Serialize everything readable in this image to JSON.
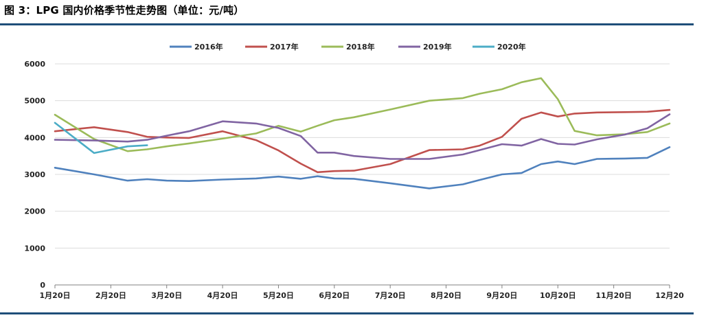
{
  "figure": {
    "title": "图 3：LPG 国内价格季节性走势图（单位：元/吨）"
  },
  "chart_data": {
    "type": "line",
    "title": "图 3：LPG 国内价格季节性走势图（单位：元/吨）",
    "xlabel": "",
    "ylabel": "",
    "ylim": [
      0,
      6000
    ],
    "yticks": [
      0,
      1000,
      2000,
      3000,
      4000,
      5000,
      6000
    ],
    "grid": true,
    "legend_position": "top",
    "x_tick_labels": [
      "1月20日",
      "2月20日",
      "3月20日",
      "4月20日",
      "5月20日",
      "6月20日",
      "7月20日",
      "8月20日",
      "9月20日",
      "10月20日",
      "11月20日",
      "12月20"
    ],
    "x_tick_index": [
      0,
      1,
      2,
      3,
      4,
      5,
      6,
      7,
      8,
      9,
      10,
      11
    ],
    "series": [
      {
        "name": "2016年",
        "color": "#4f81bd",
        "x": [
          0,
          0.7,
          1.3,
          1.65,
          2.0,
          2.4,
          3.0,
          3.6,
          4.0,
          4.4,
          4.7,
          5.0,
          5.35,
          6.0,
          6.7,
          7.3,
          7.6,
          8.0,
          8.35,
          8.7,
          9.0,
          9.3,
          9.7,
          10.2,
          10.6,
          11.0
        ],
        "values": [
          3180,
          3000,
          2830,
          2870,
          2830,
          2820,
          2860,
          2890,
          2940,
          2880,
          2950,
          2890,
          2880,
          2760,
          2620,
          2730,
          2850,
          3000,
          3040,
          3280,
          3350,
          3280,
          3420,
          3430,
          3450,
          3740
        ]
      },
      {
        "name": "2017年",
        "color": "#c0504d",
        "x": [
          0,
          0.7,
          1.3,
          1.65,
          2.0,
          2.4,
          3.0,
          3.6,
          4.0,
          4.4,
          4.7,
          5.0,
          5.35,
          6.0,
          6.7,
          7.3,
          7.6,
          8.0,
          8.35,
          8.7,
          9.0,
          9.3,
          9.7,
          10.2,
          10.6,
          11.0
        ],
        "values": [
          4170,
          4280,
          4150,
          4020,
          4000,
          3990,
          4170,
          3930,
          3650,
          3290,
          3060,
          3090,
          3100,
          3280,
          3660,
          3680,
          3780,
          4020,
          4510,
          4680,
          4570,
          4650,
          4680,
          4690,
          4700,
          4750
        ]
      },
      {
        "name": "2018年",
        "color": "#9bbb59",
        "x": [
          0,
          0.7,
          1.3,
          1.65,
          2.0,
          2.4,
          3.0,
          3.6,
          4.0,
          4.4,
          4.7,
          5.0,
          5.35,
          6.0,
          6.7,
          7.3,
          7.6,
          8.0,
          8.35,
          8.7,
          9.0,
          9.3,
          9.7,
          10.2,
          10.6,
          11.0
        ],
        "values": [
          4620,
          3960,
          3630,
          3680,
          3760,
          3840,
          3970,
          4110,
          4320,
          4160,
          4320,
          4470,
          4550,
          4760,
          5000,
          5070,
          5190,
          5310,
          5500,
          5610,
          5040,
          4180,
          4060,
          4090,
          4150,
          4380
        ]
      },
      {
        "name": "2019年",
        "color": "#8064a2",
        "x": [
          0,
          0.7,
          1.3,
          1.65,
          2.0,
          2.4,
          3.0,
          3.6,
          4.0,
          4.4,
          4.7,
          5.0,
          5.35,
          6.0,
          6.7,
          7.3,
          7.6,
          8.0,
          8.35,
          8.7,
          9.0,
          9.3,
          9.7,
          10.2,
          10.6,
          11.0
        ],
        "values": [
          3940,
          3920,
          3890,
          3940,
          4050,
          4170,
          4440,
          4380,
          4260,
          4040,
          3590,
          3590,
          3500,
          3420,
          3420,
          3540,
          3660,
          3820,
          3780,
          3960,
          3830,
          3810,
          3950,
          4080,
          4250,
          4630
        ]
      },
      {
        "name": "2020年",
        "color": "#4bacc6",
        "x": [
          0,
          0.7,
          1.3,
          1.65
        ],
        "values": [
          4400,
          3580,
          3760,
          3790
        ]
      }
    ]
  }
}
